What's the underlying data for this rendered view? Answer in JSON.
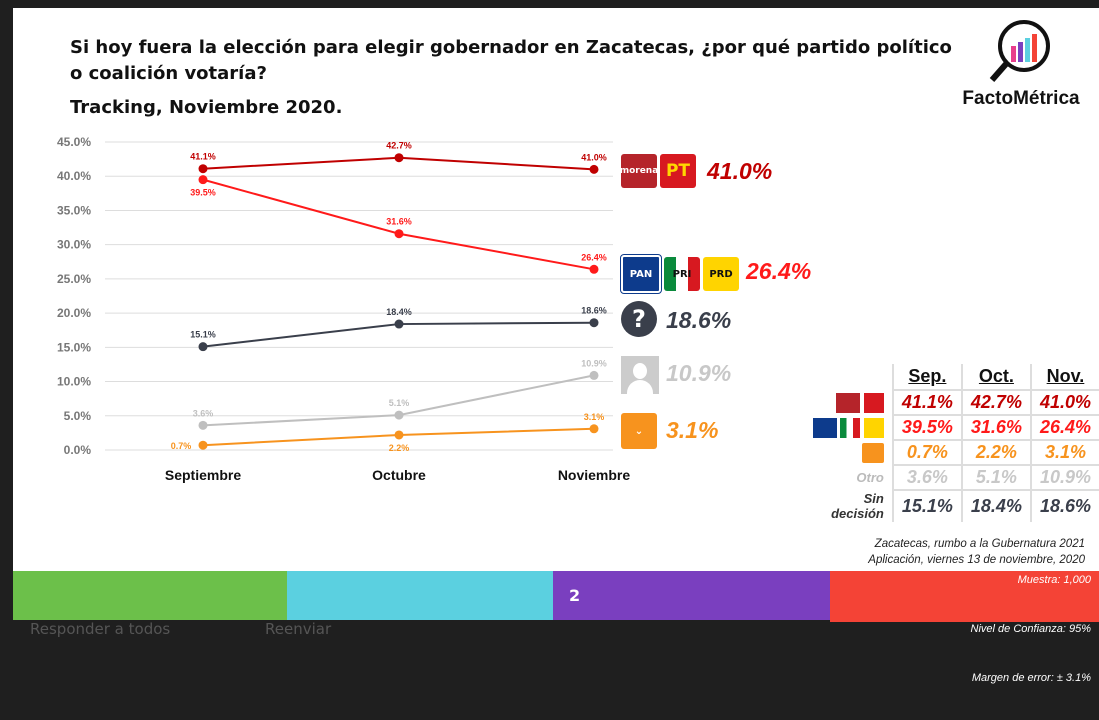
{
  "title_line1": "Si hoy fuera la elección para elegir gobernador en Zacatecas, ¿por qué partido político",
  "title_line2": "o coalición votaría?",
  "subtitle": "Tracking, Noviembre 2020.",
  "logo_text": "FactoMétrica",
  "chart_data": {
    "type": "line",
    "categories": [
      "Septiembre",
      "Octubre",
      "Noviembre"
    ],
    "ylim": [
      0,
      45
    ],
    "yticks": [
      "0.0%",
      "5.0%",
      "10.0%",
      "15.0%",
      "20.0%",
      "25.0%",
      "30.0%",
      "35.0%",
      "40.0%",
      "45.0%"
    ],
    "grid": true,
    "series": [
      {
        "party": "morena-pt",
        "values": [
          41.1,
          42.7,
          41.0
        ],
        "labels": [
          "41.1%",
          "42.7%",
          "41.0%"
        ],
        "color": "#c00000",
        "end_label": "41.0%"
      },
      {
        "party": "pan-pri-prd",
        "values": [
          39.5,
          31.6,
          26.4
        ],
        "labels": [
          "39.5%",
          "31.6%",
          "26.4%"
        ],
        "color": "#ff1a1a",
        "end_label": "26.4%"
      },
      {
        "party": "sin-decision",
        "values": [
          15.1,
          18.4,
          18.6
        ],
        "labels": [
          "15.1%",
          "18.4%",
          "18.6%"
        ],
        "color": "#3a3f4b",
        "end_label": "18.6%"
      },
      {
        "party": "otro",
        "values": [
          3.6,
          5.1,
          10.9
        ],
        "labels": [
          "3.6%",
          "5.1%",
          "10.9%"
        ],
        "color": "#bfbfbf",
        "end_label": "10.9%"
      },
      {
        "party": "movimiento-ciudadano",
        "values": [
          0.7,
          2.2,
          3.1
        ],
        "labels": [
          "0.7%",
          "2.2%",
          "3.1%"
        ],
        "color": "#f7931e",
        "end_label": "3.1%"
      }
    ]
  },
  "party_labels": {
    "morena": "morena",
    "pt": "PT",
    "pan": "PAN",
    "pri": "PRI",
    "prd": "PRD"
  },
  "table": {
    "headers": [
      "Sep.",
      "Oct.",
      "Nov."
    ],
    "rows": [
      {
        "label": "",
        "values": [
          "41.1%",
          "42.7%",
          "41.0%"
        ],
        "color": "#c00000"
      },
      {
        "label": "",
        "values": [
          "39.5%",
          "31.6%",
          "26.4%"
        ],
        "color": "#ff1a1a"
      },
      {
        "label": "",
        "values": [
          "0.7%",
          "2.2%",
          "3.1%"
        ],
        "color": "#f7931e"
      },
      {
        "label": "Otro",
        "values": [
          "3.6%",
          "5.1%",
          "10.9%"
        ],
        "color": "#c8c8c8"
      },
      {
        "label": "Sin decisión",
        "values": [
          "15.1%",
          "18.4%",
          "18.6%"
        ],
        "color": "#3a3f4b"
      }
    ]
  },
  "note1": "Zacatecas, rumbo a la Gubernatura 2021",
  "note2": "Aplicación, viernes 13 de noviembre, 2020",
  "page_number": "2",
  "muestra": "Muestra:  1,000",
  "confianza": "Nivel de Confianza: 95%",
  "margen": "Margen de error: ± 3.1%",
  "footer_colors": [
    "#6cc04a",
    "#5bd0e0",
    "#7a3fbf",
    "#f44336"
  ],
  "below": {
    "reply_all": "Responder a todos",
    "forward": "Reenviar"
  }
}
